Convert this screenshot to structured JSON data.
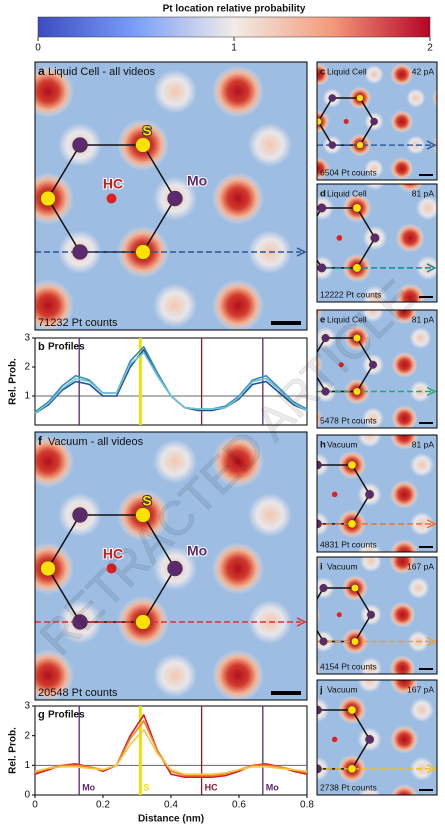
{
  "colorbar": {
    "title": "Pt location relative probability",
    "lim": [
      0,
      2
    ],
    "ticks": [
      0,
      1,
      2
    ]
  },
  "watermark": "RETRACTED ARTICLE",
  "panels": [
    {
      "letter": "a",
      "title": "Liquid Cell - all videos",
      "counts": "71232 Pt counts",
      "sites": [
        "S",
        "Mo",
        "HC"
      ],
      "arrow_color": "#2f5597"
    },
    {
      "letter": "c",
      "title": "Liquid Cell",
      "current": "42 pA",
      "counts": "6504 Pt counts",
      "arrow_color": "#2f5fa0"
    },
    {
      "letter": "d",
      "title": "Liquid Cell",
      "current": "81 pA",
      "counts": "12222 Pt counts",
      "arrow_color": "#1a8a9a"
    },
    {
      "letter": "e",
      "title": "Liquid Cell",
      "current": "81 pA",
      "counts": "5478 Pt counts",
      "arrow_color": "#2aa870"
    },
    {
      "letter": "f",
      "title": "Vacuum - all videos",
      "counts": "20548 Pt counts",
      "sites": [
        "S",
        "Mo",
        "HC"
      ],
      "arrow_color": "#e03030"
    },
    {
      "letter": "h",
      "title": "Vacuum",
      "current": "81 pA",
      "counts": "4831 Pt counts",
      "arrow_color": "#f07030"
    },
    {
      "letter": "i",
      "title": "Vacuum",
      "current": "167 pA",
      "counts": "4154 Pt counts",
      "arrow_color": "#f0a030"
    },
    {
      "letter": "j",
      "title": "Vacuum",
      "current": "167 pA",
      "counts": "2738 Pt counts",
      "arrow_color": "#f0c020"
    }
  ],
  "chart_data": [
    {
      "type": "line",
      "label": "b",
      "title": "Profiles",
      "y_label": "Rel. Prob.",
      "x": [
        0,
        0.04,
        0.08,
        0.12,
        0.16,
        0.2,
        0.24,
        0.28,
        0.32,
        0.36,
        0.4,
        0.44,
        0.48,
        0.52,
        0.56,
        0.6,
        0.64,
        0.68,
        0.72,
        0.76,
        0.8
      ],
      "xlim": [
        0,
        0.8
      ],
      "ylim": [
        0,
        3
      ],
      "yticks": [
        1,
        2,
        3
      ],
      "hline": 1,
      "markers": [
        {
          "x": 0.13,
          "color": "#5b2a6e"
        },
        {
          "x": 0.31,
          "color": "#f0e000"
        },
        {
          "x": 0.49,
          "color": "#8b1a2a"
        },
        {
          "x": 0.67,
          "color": "#5b2a6e"
        }
      ],
      "series": [
        {
          "color": "#1f4f9a",
          "values": [
            0.4,
            0.7,
            1.2,
            1.5,
            1.4,
            1.0,
            1.0,
            2.0,
            2.6,
            1.7,
            1.0,
            0.6,
            0.5,
            0.5,
            0.6,
            0.9,
            1.4,
            1.5,
            1.1,
            0.7,
            0.5
          ]
        },
        {
          "color": "#3a8ab8",
          "values": [
            0.45,
            0.8,
            1.35,
            1.7,
            1.55,
            1.1,
            1.1,
            2.2,
            2.7,
            1.8,
            1.0,
            0.6,
            0.55,
            0.55,
            0.65,
            1.0,
            1.55,
            1.7,
            1.25,
            0.8,
            0.55
          ]
        },
        {
          "color": "#6cc4d0",
          "values": [
            0.4,
            0.75,
            1.25,
            1.6,
            1.5,
            1.1,
            1.1,
            2.1,
            2.5,
            1.7,
            1.0,
            0.6,
            0.55,
            0.55,
            0.6,
            0.95,
            1.5,
            1.6,
            1.2,
            0.75,
            0.5
          ]
        }
      ]
    },
    {
      "type": "line",
      "label": "g",
      "title": "Profiles",
      "y_label": "Rel. Prob.",
      "x_label": "Distance (nm)",
      "x": [
        0,
        0.04,
        0.08,
        0.12,
        0.16,
        0.2,
        0.24,
        0.28,
        0.32,
        0.36,
        0.4,
        0.44,
        0.48,
        0.52,
        0.56,
        0.6,
        0.64,
        0.68,
        0.72,
        0.76,
        0.8
      ],
      "xlim": [
        0,
        0.8
      ],
      "xticks": [
        0,
        0.2,
        0.4,
        0.6,
        0.8
      ],
      "ylim": [
        0,
        3
      ],
      "yticks": [
        0,
        1,
        2,
        3
      ],
      "hline": 1,
      "markers": [
        {
          "x": 0.13,
          "color": "#5b2a6e",
          "label": "Mo"
        },
        {
          "x": 0.31,
          "color": "#f0e000",
          "label": "S"
        },
        {
          "x": 0.49,
          "color": "#8b1a2a",
          "label": "HC"
        },
        {
          "x": 0.67,
          "color": "#5b2a6e",
          "label": "Mo"
        }
      ],
      "series": [
        {
          "color": "#d42020",
          "values": [
            0.7,
            0.85,
            1.0,
            1.05,
            0.95,
            0.8,
            1.0,
            2.0,
            2.7,
            1.5,
            0.7,
            0.6,
            0.6,
            0.6,
            0.65,
            0.8,
            1.0,
            1.05,
            0.95,
            0.8,
            0.7
          ]
        },
        {
          "color": "#f08030",
          "values": [
            0.75,
            0.9,
            1.0,
            1.0,
            0.95,
            0.85,
            1.0,
            1.9,
            2.5,
            1.5,
            0.8,
            0.65,
            0.65,
            0.65,
            0.7,
            0.85,
            1.0,
            1.0,
            0.95,
            0.85,
            0.75
          ]
        },
        {
          "color": "#f5c842",
          "values": [
            0.8,
            0.9,
            0.95,
            0.95,
            0.9,
            0.85,
            1.0,
            1.7,
            2.2,
            1.4,
            0.85,
            0.7,
            0.7,
            0.7,
            0.75,
            0.85,
            0.95,
            0.95,
            0.9,
            0.85,
            0.8
          ]
        }
      ]
    }
  ]
}
